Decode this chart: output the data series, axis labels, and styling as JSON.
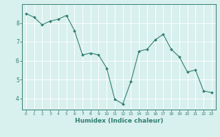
{
  "x": [
    0,
    1,
    2,
    3,
    4,
    5,
    6,
    7,
    8,
    9,
    10,
    11,
    12,
    13,
    14,
    15,
    16,
    17,
    18,
    19,
    20,
    21,
    22,
    23
  ],
  "y": [
    8.5,
    8.3,
    7.9,
    8.1,
    8.2,
    8.4,
    7.6,
    6.3,
    6.4,
    6.3,
    5.6,
    3.95,
    3.7,
    4.9,
    6.5,
    6.6,
    7.1,
    7.4,
    6.6,
    6.2,
    5.4,
    5.5,
    4.4,
    4.3
  ],
  "line_color": "#2e7d6e",
  "marker": "D",
  "marker_size": 2.0,
  "bg_color": "#d8f0ee",
  "grid_color": "#ffffff",
  "axis_color": "#2e7d6e",
  "tick_color": "#2e7d6e",
  "xlabel": "Humidex (Indice chaleur)",
  "xlabel_fontsize": 6.5,
  "xtick_fontsize": 4.2,
  "ytick_fontsize": 5.5,
  "ylabel_ticks": [
    4,
    5,
    6,
    7,
    8
  ],
  "xlim": [
    -0.5,
    23.5
  ],
  "ylim": [
    3.4,
    9.0
  ]
}
